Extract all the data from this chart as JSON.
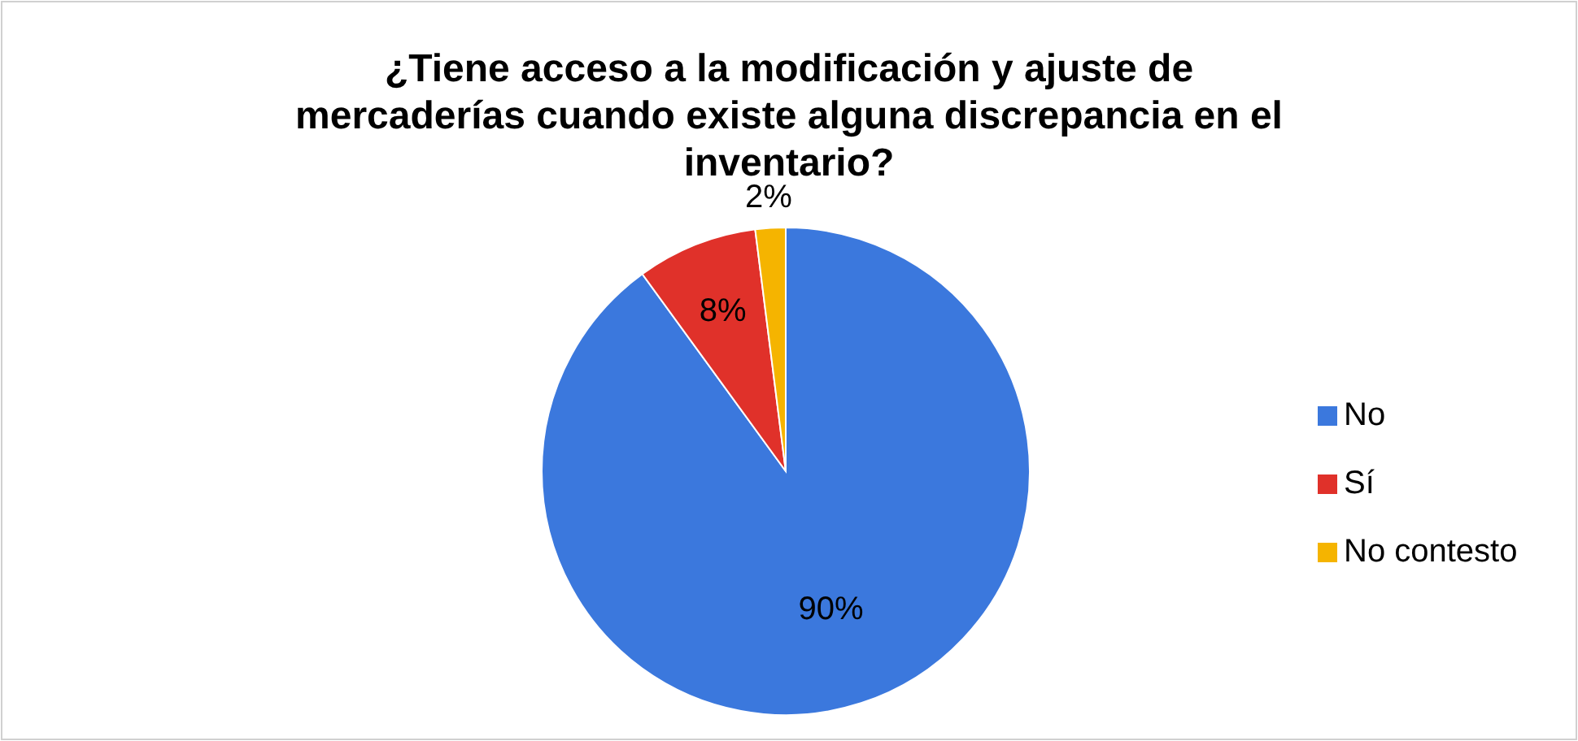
{
  "chart_data": {
    "type": "pie",
    "title": "¿Tiene acceso a la modificación y ajuste de mercaderías cuando existe alguna discrepancia  en el inventario?",
    "categories": [
      "No",
      "Sí",
      "No contesto"
    ],
    "values": [
      90,
      8,
      2
    ],
    "colors": [
      "#3b78dd",
      "#e0312a",
      "#f5b400"
    ],
    "value_labels": [
      "90%",
      "8%",
      "2%"
    ],
    "legend": "right"
  }
}
